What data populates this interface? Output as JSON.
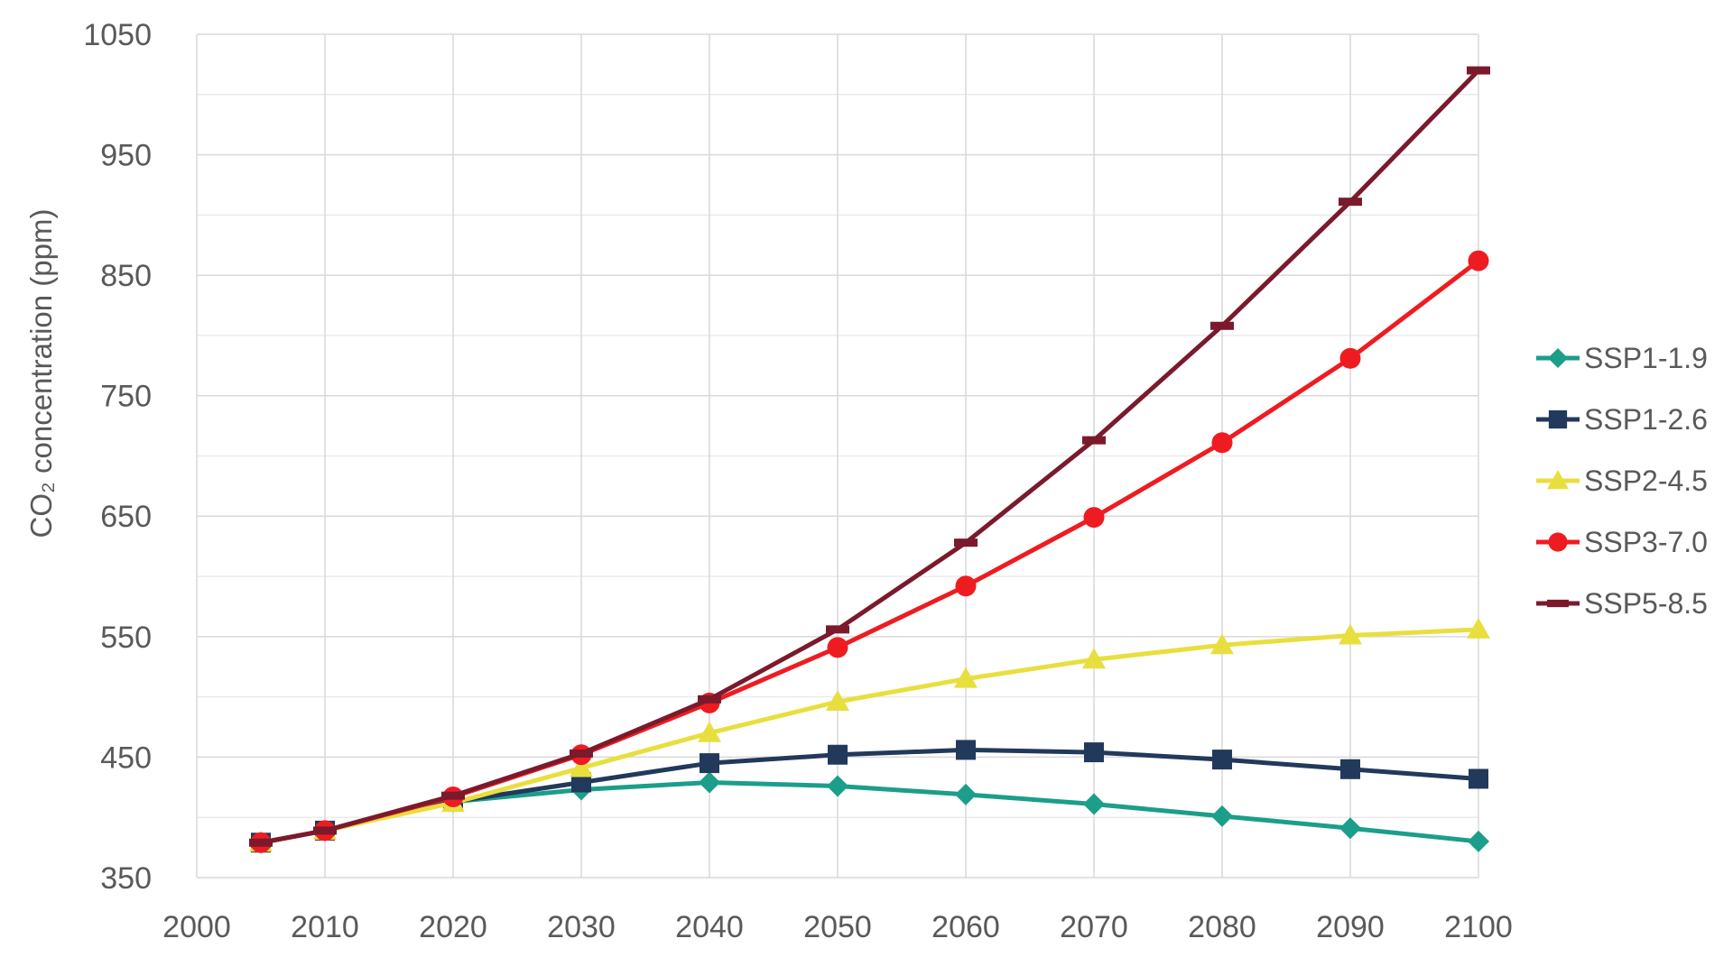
{
  "chart_data": {
    "type": "line",
    "title": "",
    "xlabel": "",
    "ylabel": "CO₂ concentration (ppm)",
    "xlim": [
      2000,
      2100
    ],
    "ylim": [
      350,
      1050
    ],
    "grid": true,
    "legend_position": "right",
    "x_ticks": [
      2000,
      2010,
      2020,
      2030,
      2040,
      2050,
      2060,
      2070,
      2080,
      2090,
      2100
    ],
    "y_ticks": [
      350,
      450,
      550,
      650,
      750,
      850,
      950,
      1050
    ],
    "y_minor_step": 50,
    "x": [
      2005,
      2010,
      2020,
      2030,
      2040,
      2050,
      2060,
      2070,
      2080,
      2090,
      2100
    ],
    "series": [
      {
        "name": "SSP1-1.9",
        "color": "#1b9e8a",
        "marker": "diamond",
        "values": [
          379,
          389,
          413,
          423,
          429,
          426,
          419,
          411,
          401,
          391,
          380
        ]
      },
      {
        "name": "SSP1-2.6",
        "color": "#21395b",
        "marker": "square",
        "values": [
          379,
          389,
          413,
          429,
          445,
          452,
          456,
          454,
          448,
          440,
          432
        ]
      },
      {
        "name": "SSP2-4.5",
        "color": "#e8df3f",
        "marker": "triangle",
        "values": [
          379,
          389,
          412,
          441,
          470,
          496,
          515,
          531,
          543,
          551,
          556
        ]
      },
      {
        "name": "SSP3-7.0",
        "color": "#ee1c21",
        "marker": "circle",
        "values": [
          379,
          389,
          417,
          452,
          495,
          541,
          592,
          649,
          711,
          781,
          862
        ]
      },
      {
        "name": "SSP5-8.5",
        "color": "#7a1a2c",
        "marker": "dash",
        "values": [
          379,
          389,
          418,
          453,
          498,
          556,
          628,
          713,
          808,
          911,
          1020
        ]
      }
    ]
  },
  "styles": {
    "tick_color": "#595959",
    "grid_major": "#d9d9d9",
    "grid_minor": "#ebebeb",
    "background": "#ffffff"
  }
}
